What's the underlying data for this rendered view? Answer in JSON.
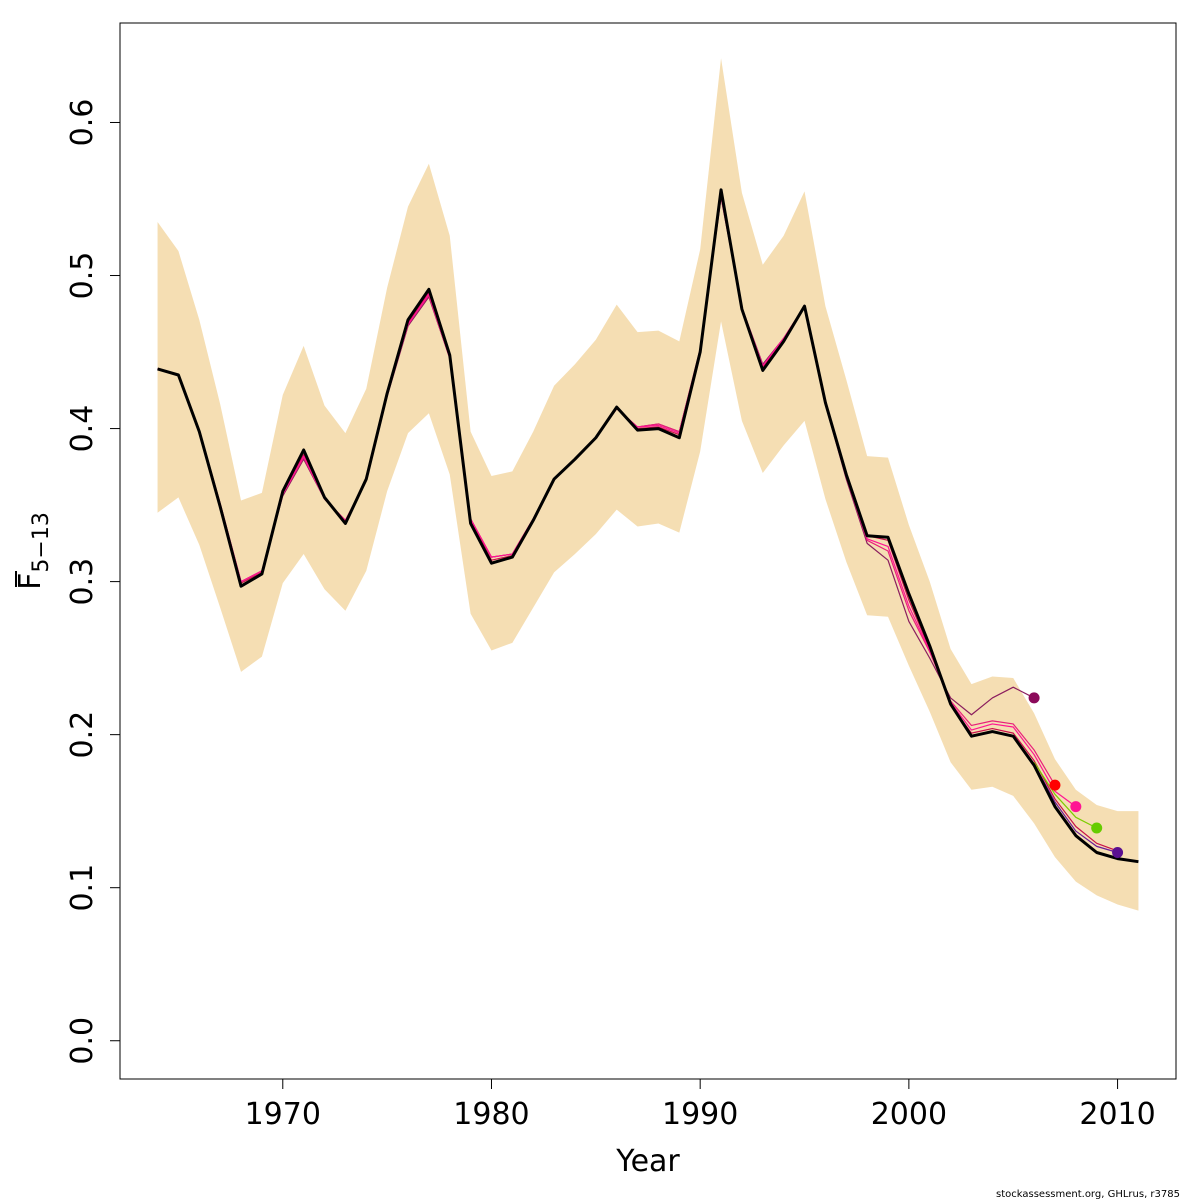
{
  "chart_data": {
    "type": "line",
    "xlabel": "Year",
    "ylabel": {
      "main": "F",
      "subscript": "5−13"
    },
    "xlim": [
      1962.2,
      2012.8
    ],
    "ylim": [
      -0.025,
      0.665
    ],
    "x_ticks": [
      1970,
      1980,
      1990,
      2000,
      2010
    ],
    "x_tick_labels": [
      "1970",
      "1980",
      "1990",
      "2000",
      "2010"
    ],
    "y_ticks": [
      0.0,
      0.1,
      0.2,
      0.3,
      0.4,
      0.5,
      0.6
    ],
    "y_tick_labels": [
      "0.0",
      "0.1",
      "0.2",
      "0.3",
      "0.4",
      "0.5",
      "0.6"
    ],
    "grid": false,
    "colors": {
      "band": "#f5deb3",
      "main_line": "#000000"
    },
    "confidence_band": {
      "years": [
        1964,
        1965,
        1966,
        1967,
        1968,
        1969,
        1970,
        1971,
        1972,
        1973,
        1974,
        1975,
        1976,
        1977,
        1978,
        1979,
        1980,
        1981,
        1982,
        1983,
        1984,
        1985,
        1986,
        1987,
        1988,
        1989,
        1990,
        1991,
        1992,
        1993,
        1994,
        1995,
        1996,
        1997,
        1998,
        1999,
        2000,
        2001,
        2002,
        2003,
        2004,
        2005,
        2006,
        2007,
        2008,
        2009,
        2010,
        2011
      ],
      "upper": [
        0.535,
        0.516,
        0.471,
        0.416,
        0.353,
        0.358,
        0.422,
        0.454,
        0.415,
        0.397,
        0.426,
        0.492,
        0.545,
        0.573,
        0.526,
        0.398,
        0.369,
        0.372,
        0.398,
        0.428,
        0.442,
        0.458,
        0.481,
        0.463,
        0.464,
        0.457,
        0.517,
        0.642,
        0.554,
        0.507,
        0.526,
        0.555,
        0.48,
        0.432,
        0.382,
        0.381,
        0.337,
        0.3,
        0.256,
        0.233,
        0.238,
        0.237,
        0.214,
        0.184,
        0.164,
        0.154,
        0.15,
        0.15
      ],
      "lower": [
        0.345,
        0.355,
        0.324,
        0.283,
        0.241,
        0.251,
        0.299,
        0.318,
        0.295,
        0.281,
        0.307,
        0.359,
        0.397,
        0.41,
        0.37,
        0.279,
        0.255,
        0.26,
        0.283,
        0.306,
        0.318,
        0.331,
        0.347,
        0.336,
        0.338,
        0.332,
        0.385,
        0.47,
        0.405,
        0.371,
        0.389,
        0.405,
        0.354,
        0.313,
        0.278,
        0.277,
        0.245,
        0.215,
        0.182,
        0.164,
        0.166,
        0.16,
        0.142,
        0.12,
        0.104,
        0.095,
        0.089,
        0.085
      ]
    },
    "series": [
      {
        "color": "#000000",
        "width": 3,
        "x": [
          1964,
          1965,
          1966,
          1967,
          1968,
          1969,
          1970,
          1971,
          1972,
          1973,
          1974,
          1975,
          1976,
          1977,
          1978,
          1979,
          1980,
          1981,
          1982,
          1983,
          1984,
          1985,
          1986,
          1987,
          1988,
          1989,
          1990,
          1991,
          1992,
          1993,
          1994,
          1995,
          1996,
          1997,
          1998,
          1999,
          2000,
          2001,
          2002,
          2003,
          2004,
          2005,
          2006,
          2007,
          2008,
          2009,
          2010,
          2011
        ],
        "y": [
          0.439,
          0.435,
          0.398,
          0.349,
          0.297,
          0.305,
          0.359,
          0.386,
          0.355,
          0.338,
          0.367,
          0.423,
          0.471,
          0.491,
          0.448,
          0.338,
          0.312,
          0.316,
          0.34,
          0.367,
          0.38,
          0.394,
          0.414,
          0.399,
          0.4,
          0.394,
          0.45,
          0.556,
          0.478,
          0.438,
          0.457,
          0.48,
          0.417,
          0.37,
          0.33,
          0.329,
          0.292,
          0.258,
          0.22,
          0.199,
          0.202,
          0.199,
          0.18,
          0.153,
          0.134,
          0.123,
          0.119,
          0.117
        ]
      },
      {
        "color": "#c8104a",
        "width": 1.2,
        "x": [
          1964,
          1965,
          1966,
          1967,
          1968,
          1969,
          1970,
          1971,
          1972,
          1973,
          1974,
          1975,
          1976,
          1977,
          1978,
          1979,
          1980,
          1981,
          1982,
          1983,
          1984,
          1985,
          1986,
          1987,
          1988,
          1989,
          1990,
          1991,
          1992,
          1993,
          1994,
          1995,
          1996,
          1997,
          1998,
          1999,
          2000,
          2001,
          2002,
          2003,
          2004,
          2005,
          2006,
          2007,
          2008,
          2009,
          2010
        ],
        "y": [
          0.439,
          0.435,
          0.398,
          0.35,
          0.299,
          0.306,
          0.358,
          0.383,
          0.355,
          0.339,
          0.367,
          0.423,
          0.469,
          0.489,
          0.447,
          0.34,
          0.314,
          0.317,
          0.34,
          0.367,
          0.38,
          0.394,
          0.414,
          0.4,
          0.401,
          0.396,
          0.451,
          0.553,
          0.478,
          0.44,
          0.458,
          0.48,
          0.417,
          0.37,
          0.33,
          0.327,
          0.288,
          0.256,
          0.219,
          0.201,
          0.204,
          0.201,
          0.183,
          0.158,
          0.14,
          0.129,
          0.124
        ]
      },
      {
        "color": "#8b1d5e",
        "width": 1.2,
        "marker_color": "#8b0a5a",
        "x": [
          1964,
          1965,
          1966,
          1967,
          1968,
          1969,
          1970,
          1971,
          1972,
          1973,
          1974,
          1975,
          1976,
          1977,
          1978,
          1979,
          1980,
          1981,
          1982,
          1983,
          1984,
          1985,
          1986,
          1987,
          1988,
          1989,
          1990,
          1991,
          1992,
          1993,
          1994,
          1995,
          1996,
          1997,
          1998,
          1999,
          2000,
          2001,
          2002,
          2003,
          2004,
          2005,
          2006
        ],
        "y": [
          0.439,
          0.435,
          0.399,
          0.351,
          0.3,
          0.307,
          0.356,
          0.38,
          0.354,
          0.34,
          0.366,
          0.421,
          0.467,
          0.486,
          0.446,
          0.341,
          0.316,
          0.318,
          0.341,
          0.367,
          0.38,
          0.394,
          0.413,
          0.401,
          0.403,
          0.398,
          0.452,
          0.551,
          0.479,
          0.442,
          0.459,
          0.48,
          0.416,
          0.367,
          0.325,
          0.314,
          0.274,
          0.25,
          0.224,
          0.213,
          0.224,
          0.231,
          0.224
        ]
      },
      {
        "color": "#e8207a",
        "width": 1.2,
        "marker_color": "#ff0000",
        "x": [
          1964,
          1965,
          1966,
          1967,
          1968,
          1969,
          1970,
          1971,
          1972,
          1973,
          1974,
          1975,
          1976,
          1977,
          1978,
          1979,
          1980,
          1981,
          1982,
          1983,
          1984,
          1985,
          1986,
          1987,
          1988,
          1989,
          1990,
          1991,
          1992,
          1993,
          1994,
          1995,
          1996,
          1997,
          1998,
          1999,
          2000,
          2001,
          2002,
          2003,
          2004,
          2005,
          2006,
          2007
        ],
        "y": [
          0.439,
          0.435,
          0.399,
          0.351,
          0.3,
          0.307,
          0.357,
          0.381,
          0.354,
          0.34,
          0.366,
          0.422,
          0.468,
          0.487,
          0.446,
          0.341,
          0.316,
          0.318,
          0.341,
          0.367,
          0.38,
          0.394,
          0.413,
          0.401,
          0.403,
          0.398,
          0.452,
          0.552,
          0.479,
          0.441,
          0.459,
          0.48,
          0.416,
          0.368,
          0.327,
          0.32,
          0.281,
          0.254,
          0.222,
          0.206,
          0.209,
          0.207,
          0.19,
          0.167
        ]
      },
      {
        "color": "#ff1493",
        "width": 1.2,
        "marker_color": "#ff1493",
        "x": [
          1964,
          1965,
          1966,
          1967,
          1968,
          1969,
          1970,
          1971,
          1972,
          1973,
          1974,
          1975,
          1976,
          1977,
          1978,
          1979,
          1980,
          1981,
          1982,
          1983,
          1984,
          1985,
          1986,
          1987,
          1988,
          1989,
          1990,
          1991,
          1992,
          1993,
          1994,
          1995,
          1996,
          1997,
          1998,
          1999,
          2000,
          2001,
          2002,
          2003,
          2004,
          2005,
          2006,
          2007,
          2008
        ],
        "y": [
          0.439,
          0.435,
          0.399,
          0.35,
          0.3,
          0.307,
          0.357,
          0.382,
          0.354,
          0.34,
          0.366,
          0.422,
          0.468,
          0.488,
          0.446,
          0.341,
          0.316,
          0.318,
          0.341,
          0.367,
          0.38,
          0.394,
          0.413,
          0.401,
          0.402,
          0.397,
          0.451,
          0.552,
          0.479,
          0.441,
          0.459,
          0.48,
          0.416,
          0.369,
          0.328,
          0.323,
          0.284,
          0.255,
          0.221,
          0.203,
          0.207,
          0.205,
          0.187,
          0.163,
          0.153
        ]
      },
      {
        "color": "#7ccd00",
        "width": 1.2,
        "marker_color": "#66cc00",
        "x": [
          2006,
          2007,
          2008,
          2009
        ],
        "y": [
          0.182,
          0.161,
          0.146,
          0.139
        ]
      },
      {
        "color": "#6a1b9a",
        "width": 1.2,
        "marker_color": "#5a1090",
        "x": [
          2006,
          2007,
          2008,
          2009,
          2010
        ],
        "y": [
          0.181,
          0.156,
          0.137,
          0.127,
          0.123
        ]
      }
    ]
  },
  "footer": {
    "text": "stockassessment.org, GHLrus, r3785"
  }
}
